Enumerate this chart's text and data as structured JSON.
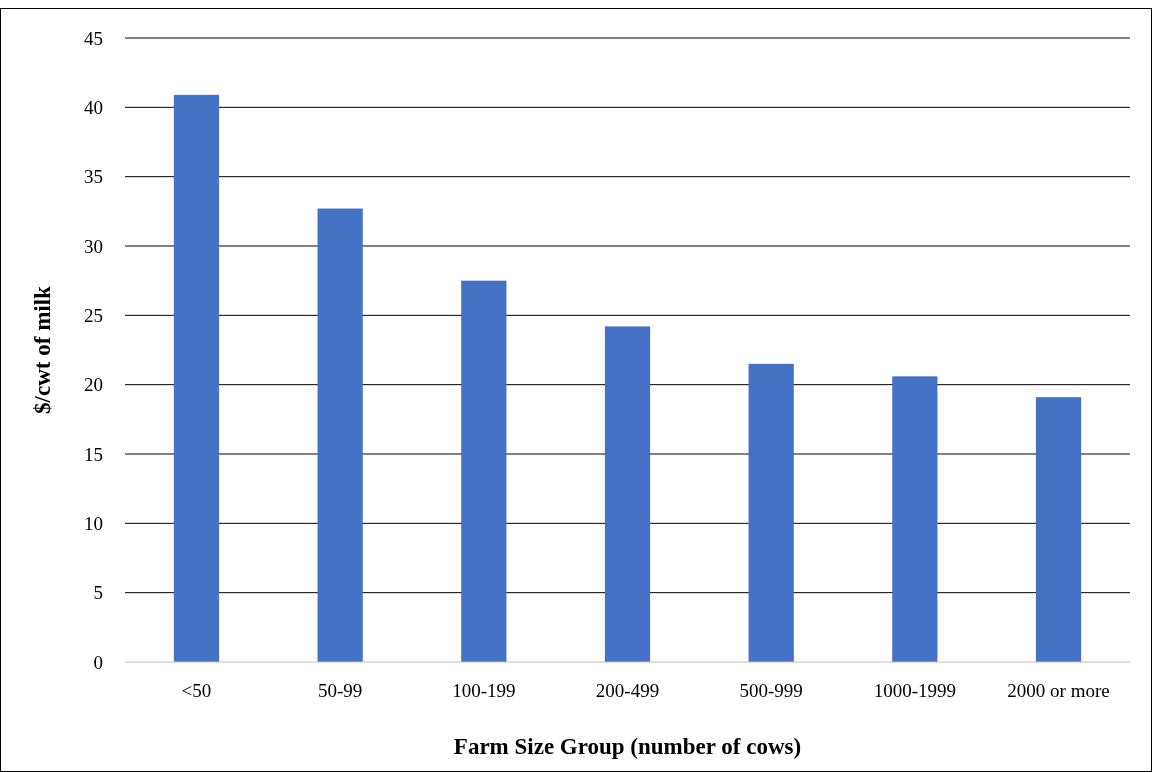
{
  "chart_data": {
    "type": "bar",
    "xlabel": "Farm Size Group (number of cows)",
    "ylabel": "$/cwt of milk",
    "categories": [
      "<50",
      "50-99",
      "100-199",
      "200-499",
      "500-999",
      "1000-1999",
      "2000 or more"
    ],
    "values": [
      40.9,
      32.7,
      27.5,
      24.2,
      21.5,
      20.6,
      19.1
    ],
    "color": "#4472c4",
    "ylim": [
      0,
      45
    ],
    "yticks": [
      0,
      5,
      10,
      15,
      20,
      25,
      30,
      35,
      40,
      45
    ],
    "grid": "y"
  }
}
